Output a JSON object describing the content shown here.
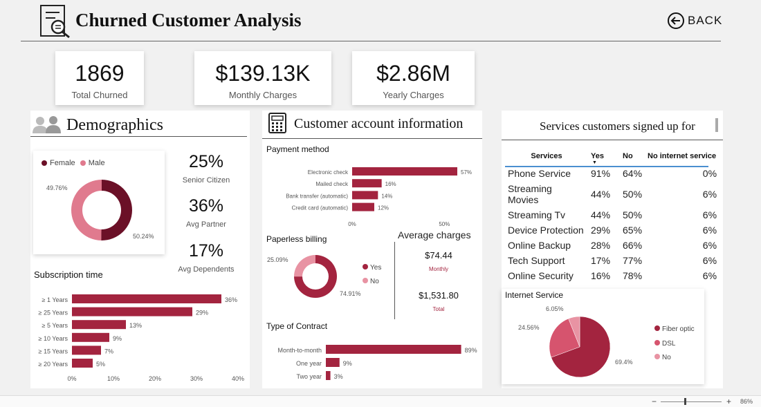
{
  "header": {
    "title": "Churned Customer Analysis",
    "back_label": "BACK",
    "zoom": "86%"
  },
  "colors": {
    "primary": "#a3243f",
    "dark": "#6b1027",
    "light": "#e07a8e",
    "lighter": "#e893a3"
  },
  "kpis": [
    {
      "value": "1869",
      "label": "Total Churned"
    },
    {
      "value": "$139.13K",
      "label": "Monthly Charges"
    },
    {
      "value": "$2.86M",
      "label": "Yearly Charges"
    }
  ],
  "demographics": {
    "title": "Demographics",
    "icon": "people-icon",
    "gender_legend": [
      "Female",
      "Male"
    ],
    "stats": [
      {
        "value": "25%",
        "label": "Senior Citizen"
      },
      {
        "value": "36%",
        "label": "Avg Partner"
      },
      {
        "value": "17%",
        "label": "Avg Dependents"
      }
    ]
  },
  "account": {
    "title": "Customer account information",
    "icon": "calculator-icon",
    "payment_title": "Payment method",
    "paperless_title": "Paperless billing",
    "avg_title": "Average charges",
    "avg_monthly_value": "$74.44",
    "avg_monthly_label": "Monthly",
    "avg_total_value": "$1,531.80",
    "avg_total_label": "Total",
    "contract_title": "Type of Contract"
  },
  "services": {
    "title": "Services customers signed up for",
    "columns": [
      "Services",
      "Yes",
      "No",
      "No internet service"
    ],
    "rows": [
      [
        "Phone Service",
        "91%",
        "64%",
        "0%"
      ],
      [
        "Streaming Movies",
        "44%",
        "50%",
        "6%"
      ],
      [
        "Streaming Tv",
        "44%",
        "50%",
        "6%"
      ],
      [
        "Device Protection",
        "29%",
        "65%",
        "6%"
      ],
      [
        "Online Backup",
        "28%",
        "66%",
        "6%"
      ],
      [
        "Tech Support",
        "17%",
        "77%",
        "6%"
      ],
      [
        "Online Security",
        "16%",
        "78%",
        "6%"
      ]
    ],
    "internet_title": "Internet Service"
  },
  "chart_data": [
    {
      "id": "gender",
      "type": "pie",
      "donut": true,
      "categories": [
        "Female",
        "Male"
      ],
      "values": [
        49.76,
        50.24
      ],
      "labels": [
        "49.76%",
        "50.24%"
      ]
    },
    {
      "id": "subscription",
      "type": "bar",
      "orientation": "horizontal",
      "title": "Subscription time",
      "categories": [
        "≥ 1 Years",
        "≥ 25 Years",
        "≥ 5 Years",
        "≥ 10 Years",
        "≥ 15 Years",
        "≥ 20 Years"
      ],
      "values": [
        36,
        29,
        13,
        9,
        7,
        5
      ],
      "labels": [
        "36%",
        "29%",
        "13%",
        "9%",
        "7%",
        "5%"
      ],
      "xlim": [
        0,
        40
      ],
      "ticks": [
        "0%",
        "10%",
        "20%",
        "30%",
        "40%"
      ]
    },
    {
      "id": "payment",
      "type": "bar",
      "orientation": "horizontal",
      "title": "Payment method",
      "categories": [
        "Electronic check",
        "Mailed check",
        "Bank transfer (automatic)",
        "Credit card (automatic)"
      ],
      "values": [
        57,
        16,
        14,
        12
      ],
      "labels": [
        "57%",
        "16%",
        "14%",
        "12%"
      ],
      "xlim": [
        0,
        60
      ],
      "ticks": [
        "0%",
        "50%"
      ]
    },
    {
      "id": "paperless",
      "type": "pie",
      "donut": true,
      "title": "Paperless billing",
      "categories": [
        "Yes",
        "No"
      ],
      "values": [
        74.91,
        25.09
      ],
      "labels": [
        "74.91%",
        "25.09%"
      ]
    },
    {
      "id": "contract",
      "type": "bar",
      "orientation": "horizontal",
      "title": "Type of Contract",
      "categories": [
        "Month-to-month",
        "One year",
        "Two year"
      ],
      "values": [
        89,
        9,
        3
      ],
      "labels": [
        "89%",
        "9%",
        "3%"
      ],
      "xlim": [
        0,
        91
      ]
    },
    {
      "id": "internet",
      "type": "pie",
      "title": "Internet Service",
      "categories": [
        "Fiber optic",
        "DSL",
        "No"
      ],
      "values": [
        69.4,
        24.56,
        6.05
      ],
      "labels": [
        "69.4%",
        "24.56%",
        "6.05%"
      ]
    }
  ]
}
